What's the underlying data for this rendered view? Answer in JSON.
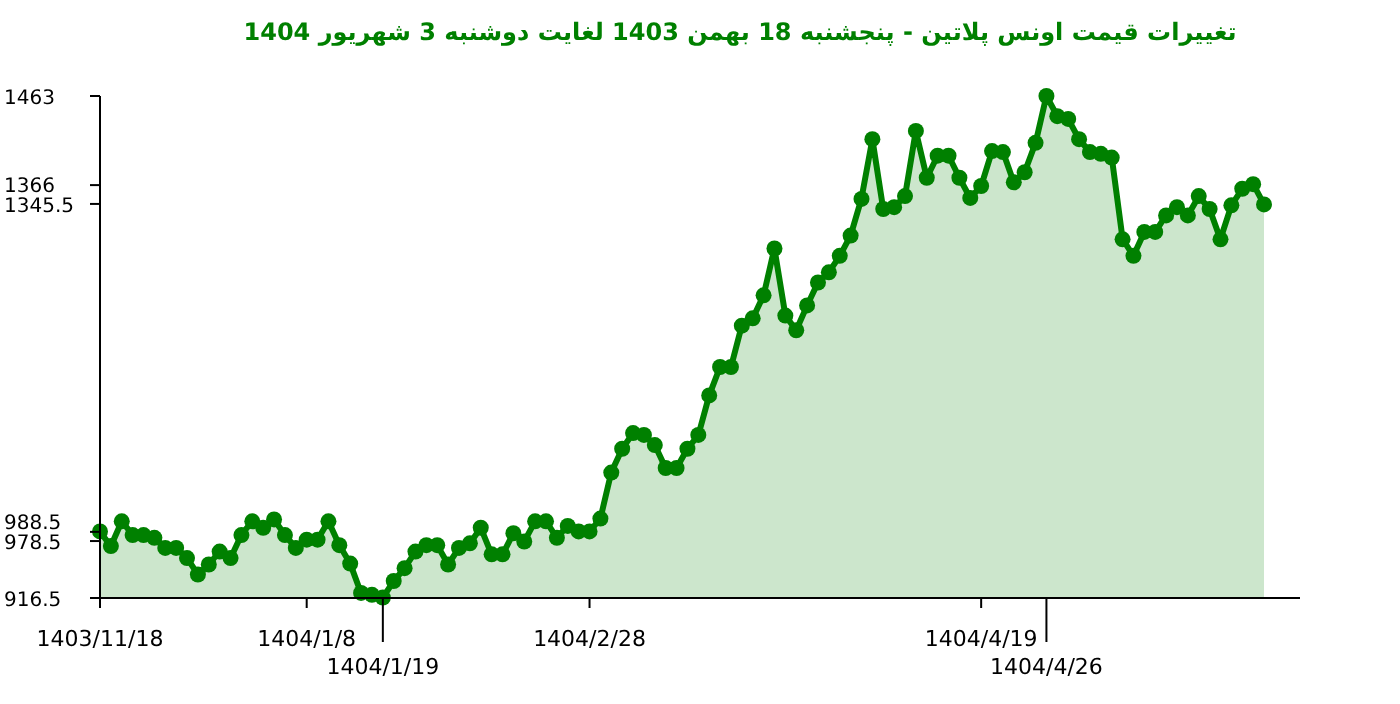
{
  "chart_data": {
    "type": "area",
    "title": "تغییرات قیمت اونس پلاتین - پنجشنبه  18 بهمن 1403 لغایت  دوشنبه  3 شهریور 1404",
    "color": "#008000",
    "marker": "circle",
    "line_style": "solid",
    "ylim": [
      916.5,
      1463
    ],
    "yticks": [
      916.5,
      978.5,
      988.5,
      1345.5,
      1366,
      1463
    ],
    "categories": [
      "1403/11/18",
      null,
      null,
      null,
      null,
      null,
      null,
      null,
      null,
      null,
      null,
      null,
      null,
      null,
      null,
      null,
      null,
      null,
      null,
      "1404/1/8",
      null,
      null,
      null,
      null,
      null,
      null,
      "1404/1/19",
      null,
      null,
      null,
      null,
      null,
      null,
      null,
      null,
      null,
      null,
      null,
      null,
      null,
      null,
      null,
      null,
      null,
      null,
      "1404/2/28",
      null,
      null,
      null,
      null,
      null,
      null,
      null,
      null,
      null,
      null,
      null,
      null,
      null,
      null,
      null,
      null,
      null,
      null,
      null,
      null,
      null,
      null,
      null,
      null,
      null,
      null,
      null,
      null,
      null,
      null,
      null,
      null,
      null,
      null,
      null,
      "1404/4/19",
      null,
      null,
      null,
      null,
      null,
      "1404/4/26",
      null,
      null,
      null,
      null,
      null,
      null,
      null,
      null,
      null,
      null,
      null,
      null,
      null,
      null,
      null,
      null,
      null,
      null,
      null,
      null
    ],
    "values": [
      989,
      973,
      1000,
      985,
      985,
      982,
      971,
      971,
      960,
      942,
      953,
      967,
      960,
      985,
      1000,
      993,
      1002,
      985,
      971,
      980,
      980,
      1000,
      974,
      954,
      922,
      920,
      917,
      935,
      949,
      967,
      974,
      974,
      953,
      971,
      976,
      993,
      964,
      964,
      987,
      978,
      1000,
      1000,
      982,
      995,
      989,
      989,
      1003,
      1053,
      1079,
      1096,
      1094,
      1083,
      1058,
      1058,
      1079,
      1094,
      1137,
      1168,
      1168,
      1213,
      1221,
      1246,
      1297,
      1224,
      1208,
      1235,
      1260,
      1271,
      1289,
      1311,
      1351,
      1416,
      1340,
      1342,
      1354,
      1425,
      1374,
      1398,
      1398,
      1374,
      1352,
      1365,
      1403,
      1402,
      1369,
      1380,
      1412,
      1463,
      1441,
      1438,
      1416,
      1402,
      1400,
      1396,
      1307,
      1289,
      1315,
      1315,
      1333,
      1342,
      1333,
      1354,
      1340,
      1307,
      1344,
      1362,
      1367,
      1345
    ]
  }
}
